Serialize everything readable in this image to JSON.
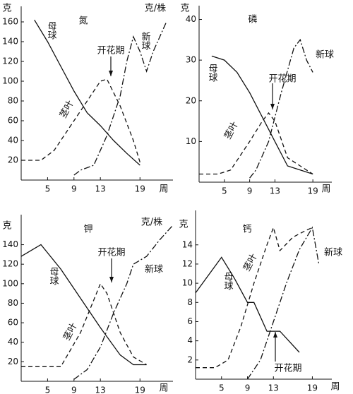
{
  "chart_data": [
    {
      "type": "line",
      "title": "氮",
      "ylabel": "克",
      "xlabel": "周",
      "unit_label": "克/株",
      "annotation": "开花期",
      "xlim": [
        1,
        24
      ],
      "xticks": [
        5,
        9,
        13,
        19
      ],
      "ylim": [
        0,
        170
      ],
      "yticks": [
        20,
        40,
        60,
        80,
        100,
        120,
        140,
        160
      ],
      "series": [
        {
          "name": "母球",
          "style": "solid",
          "color": "#111",
          "x": [
            3,
            5,
            7,
            9,
            11,
            13,
            15,
            17,
            19
          ],
          "values": [
            162,
            140,
            115,
            90,
            68,
            55,
            40,
            27,
            15
          ]
        },
        {
          "name": "茎叶",
          "style": "dashed",
          "color": "#111",
          "x": [
            1,
            4,
            6,
            9,
            11,
            13,
            14,
            16,
            18,
            19
          ],
          "values": [
            20,
            20,
            30,
            60,
            80,
            100,
            102,
            75,
            40,
            18
          ]
        },
        {
          "name": "新球",
          "style": "dashdot",
          "color": "#111",
          "x": [
            9,
            10,
            12,
            14,
            16,
            17,
            18,
            19,
            20,
            21,
            23
          ],
          "values": [
            5,
            10,
            15,
            45,
            85,
            120,
            145,
            130,
            110,
            130,
            160
          ]
        }
      ]
    },
    {
      "type": "line",
      "title": "磷",
      "ylabel": "克",
      "xlabel": "周",
      "annotation": "开花期",
      "xlim": [
        1,
        22
      ],
      "xticks": [
        5,
        9,
        13,
        19
      ],
      "ylim": [
        0,
        42
      ],
      "yticks": [
        10,
        20,
        30,
        40
      ],
      "series": [
        {
          "name": "母球",
          "style": "solid",
          "color": "#111",
          "x": [
            3,
            5,
            7,
            9,
            11,
            13,
            15,
            17,
            19
          ],
          "values": [
            31,
            30,
            27,
            22,
            16,
            10,
            4,
            3,
            2
          ]
        },
        {
          "name": "茎叶",
          "style": "dashed",
          "color": "#111",
          "x": [
            1,
            4,
            6,
            9,
            11,
            12,
            13,
            15,
            17,
            19
          ],
          "values": [
            2,
            2,
            3,
            10,
            15,
            17,
            15,
            6,
            4,
            2
          ]
        },
        {
          "name": "新球",
          "style": "dashdot",
          "color": "#111",
          "x": [
            9,
            10,
            12,
            14,
            16,
            17,
            18,
            19
          ],
          "values": [
            1,
            3,
            10,
            22,
            33,
            35,
            30,
            27
          ]
        }
      ]
    },
    {
      "type": "line",
      "title": "钾",
      "ylabel": "克",
      "xlabel": "周",
      "unit_label": "克/株",
      "annotation": "开花期",
      "xlim": [
        1,
        24
      ],
      "xticks": [
        5,
        9,
        13,
        19
      ],
      "ylim": [
        0,
        165
      ],
      "yticks": [
        20,
        40,
        60,
        80,
        100,
        120,
        140
      ],
      "series": [
        {
          "name": "母球",
          "style": "solid",
          "color": "#111",
          "x": [
            1,
            4,
            7,
            10,
            13,
            16,
            18,
            20
          ],
          "values": [
            128,
            140,
            115,
            85,
            55,
            27,
            17,
            17
          ]
        },
        {
          "name": "茎叶",
          "style": "dashed",
          "color": "#111",
          "x": [
            1,
            5,
            7,
            10,
            13,
            14,
            16,
            18,
            20
          ],
          "values": [
            15,
            15,
            15,
            50,
            100,
            90,
            50,
            25,
            17
          ]
        },
        {
          "name": "新球",
          "style": "dashdot",
          "color": "#111",
          "x": [
            9,
            11,
            13,
            15,
            17,
            18,
            20,
            22,
            24
          ],
          "values": [
            2,
            12,
            35,
            70,
            100,
            120,
            128,
            145,
            160
          ]
        }
      ]
    },
    {
      "type": "line",
      "title": "钙",
      "ylabel": "克",
      "xlabel": "周",
      "annotation": "开花期",
      "xlim": [
        1,
        22
      ],
      "xticks": [
        5,
        9,
        13,
        19
      ],
      "ylim": [
        0,
        17
      ],
      "yticks": [
        2,
        4,
        6,
        8,
        10,
        12,
        14
      ],
      "series": [
        {
          "name": "母球",
          "style": "solid",
          "color": "#111",
          "x": [
            1,
            5,
            7,
            9,
            10,
            12,
            14,
            17
          ],
          "values": [
            9,
            12.7,
            10.5,
            8,
            8,
            5,
            5,
            2.8
          ]
        },
        {
          "name": "茎叶",
          "style": "dashed",
          "color": "#111",
          "x": [
            1,
            4,
            6,
            8,
            10,
            12,
            13,
            14,
            16,
            18,
            19
          ],
          "values": [
            1.2,
            1.2,
            2,
            5.5,
            10,
            14,
            15.8,
            13.4,
            14.8,
            15.5,
            15.8
          ]
        },
        {
          "name": "新球",
          "style": "dashdot",
          "color": "#111",
          "x": [
            9,
            11,
            13,
            15,
            17,
            19,
            20
          ],
          "values": [
            0,
            2,
            6,
            10,
            13.5,
            15.8,
            12
          ]
        }
      ]
    }
  ]
}
